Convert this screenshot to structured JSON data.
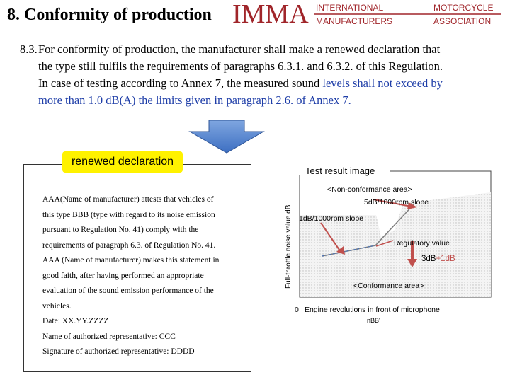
{
  "header": {
    "title": "8. Conformity of production",
    "logo": {
      "main": "IMMA",
      "line1_left": "INTERNATIONAL",
      "line1_right": "MOTORCYCLE",
      "line2_left": "MANUFACTURERS",
      "line2_right": "ASSOCIATION",
      "color": "#a0252a"
    }
  },
  "paragraph": {
    "number": "8.3.",
    "lines": [
      "For conformity of production, the manufacturer shall make a renewed declaration that",
      "the type still fulfils the requirements of paragraphs 6.3.1. and 6.3.2. of this Regulation.",
      "In case of testing according to Annex 7, the measured sound "
    ],
    "highlight_1": "levels shall not exceed by",
    "highlight_2": "more than 1.0 dB(A) the limits given in paragraph 2.6. of Annex 7."
  },
  "declaration": {
    "label": "renewed declaration",
    "label_color": "#fff200",
    "lines": [
      "AAA(Name of manufacturer) attests that vehicles of",
      "this type BBB (type with regard to its noise emission",
      "pursuant to Regulation No. 41) comply with the",
      "requirements of paragraph 6.3. of Regulation No. 41.",
      "AAA (Name of manufacturer) makes this statement in",
      "good faith, after having performed an appropriate",
      "evaluation of the sound emission performance of the",
      "vehicles.",
      "Date: XX.YY.ZZZZ",
      "Name of authorized representative: CCC",
      "Signature of authorized representative: DDDD"
    ]
  },
  "chart": {
    "title": "Test result image",
    "ylabel": "Full-throttle noise value dB",
    "xlabel": "Engine revolutions in front of microphone",
    "x_unit": "nBB'",
    "origin_label": "0",
    "nonconformance": "<Non-conformance area>",
    "conformance": "<Conformance area>",
    "slope_right": "5dB/1000rpm slope",
    "slope_left": "1dB/1000rpm slope",
    "regulatory": "Regulatory value",
    "value_3db": "3dB",
    "value_plus": "+1dB",
    "accent": "#c0504d"
  }
}
